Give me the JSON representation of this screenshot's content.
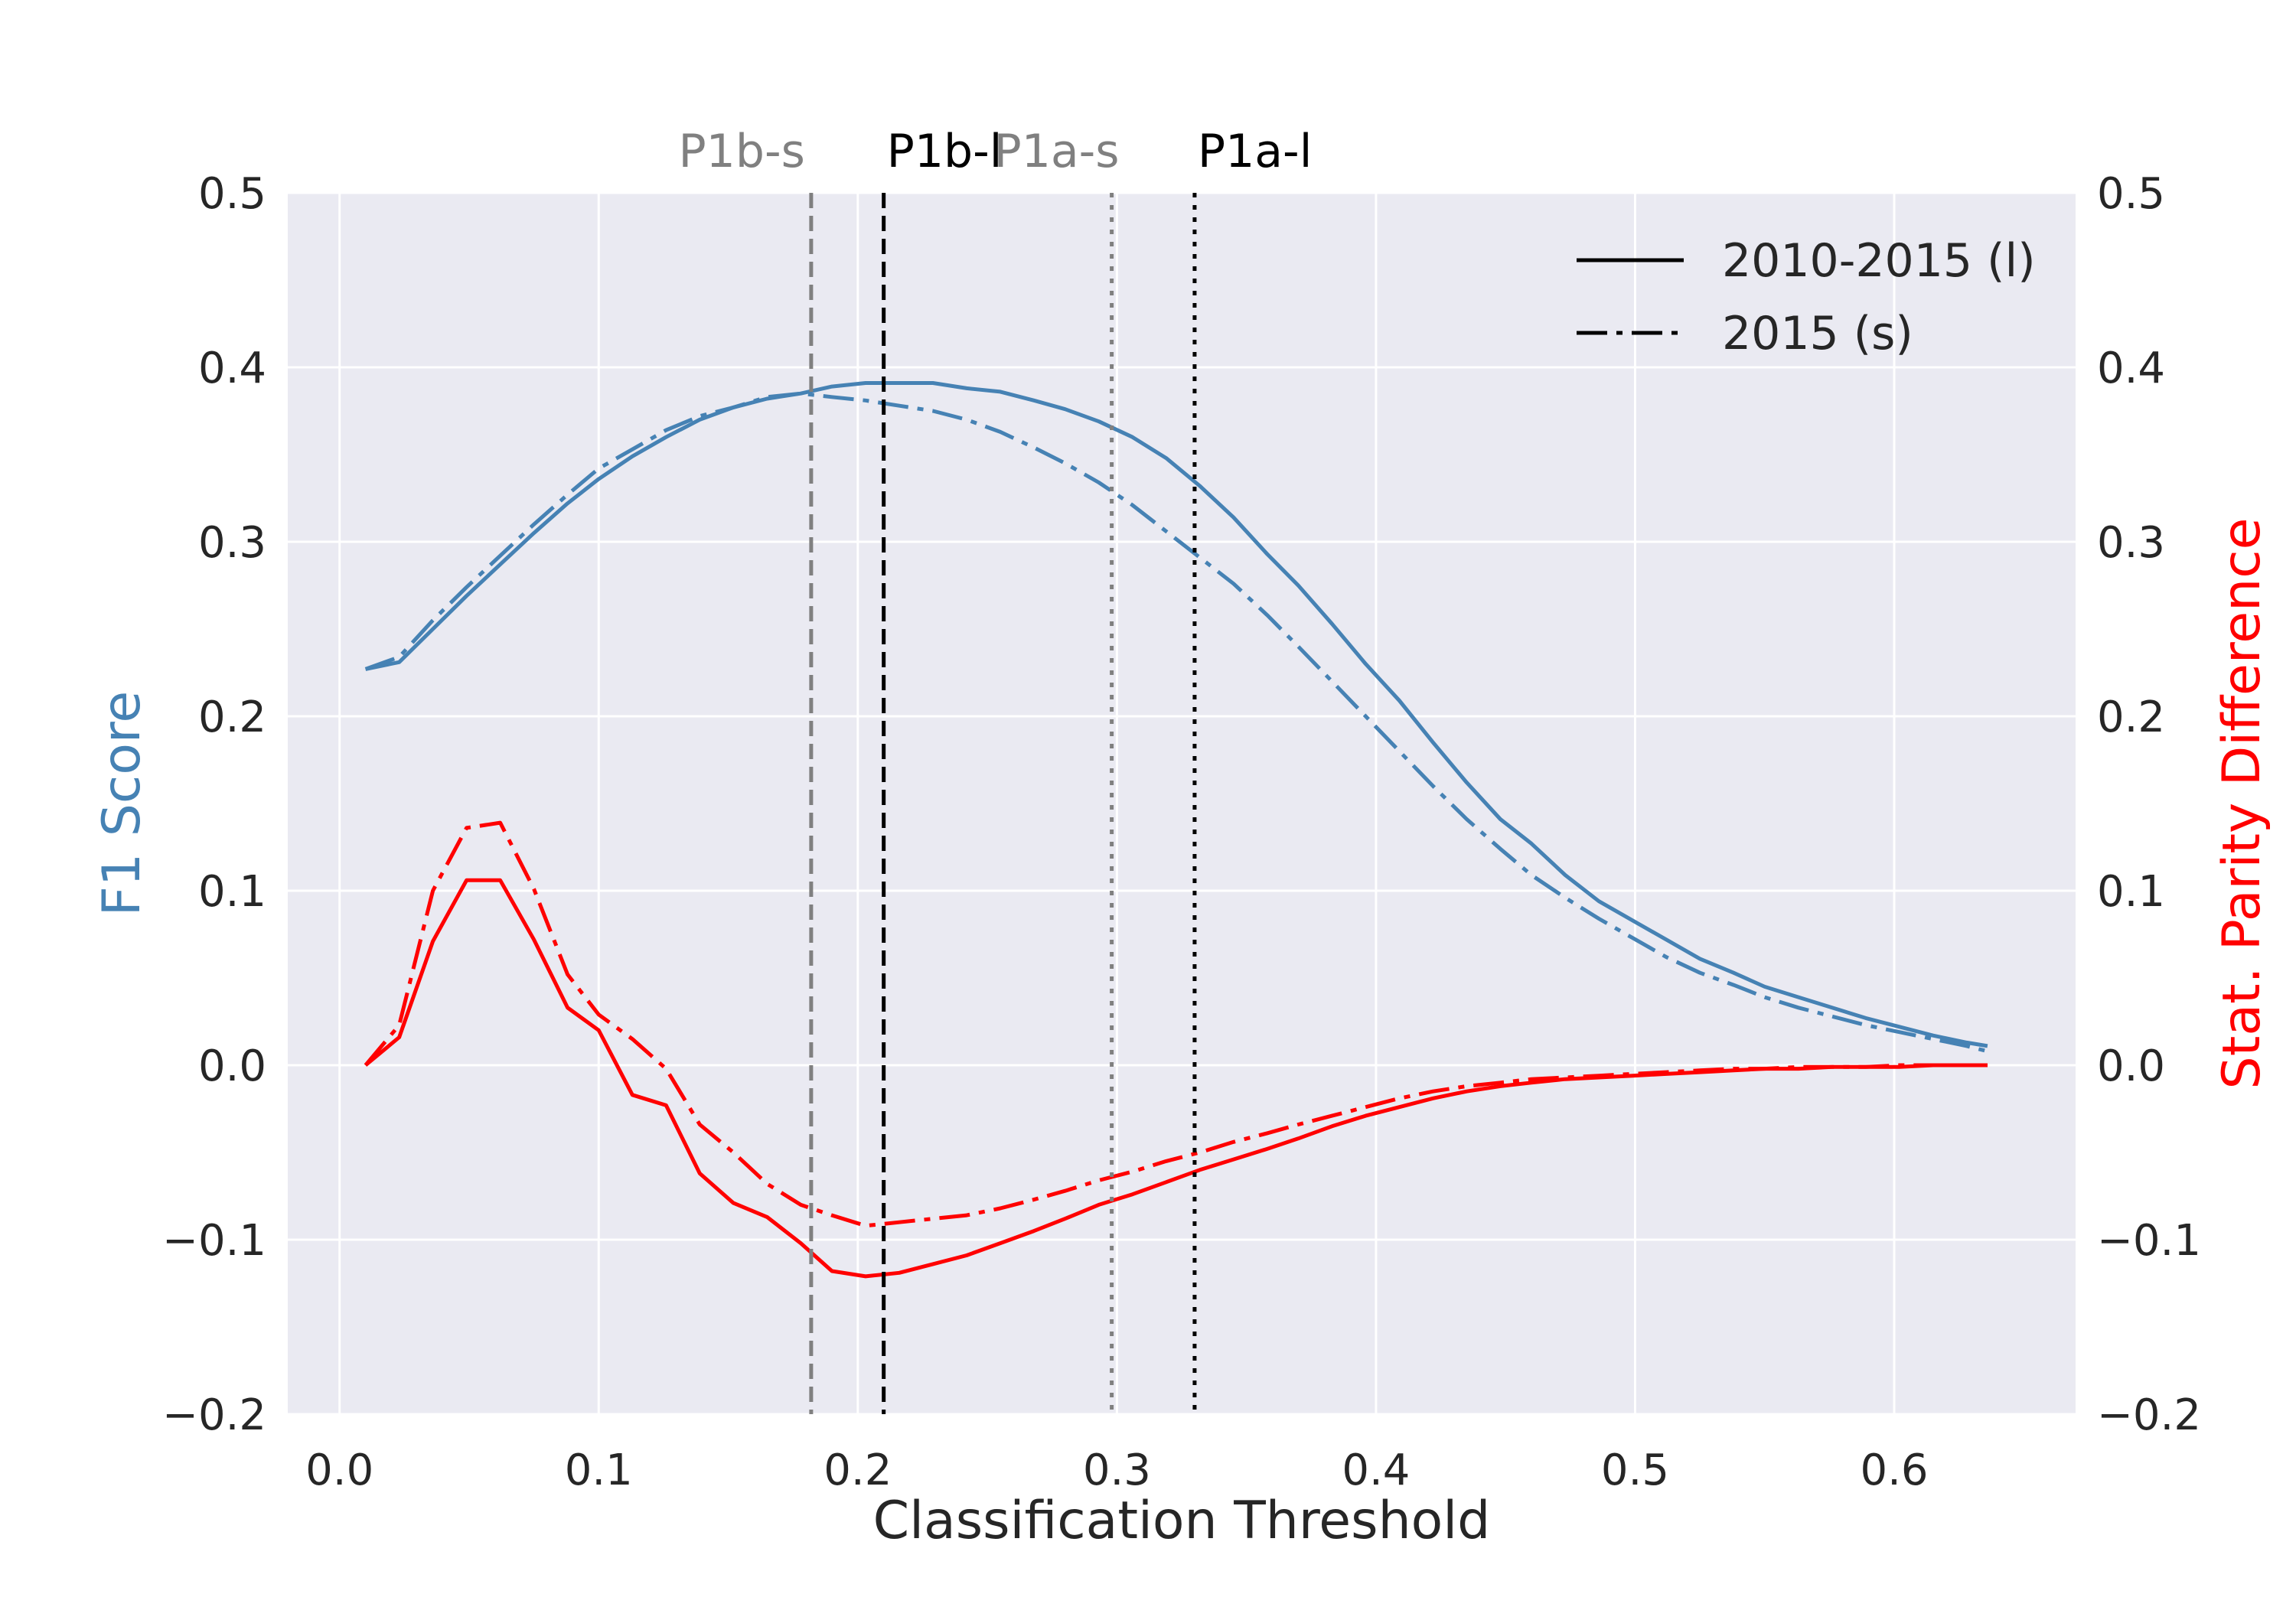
{
  "chart_data": {
    "type": "line",
    "title": "",
    "xlabel": "Classification Threshold",
    "ylabel_left": "F1 Score",
    "ylabel_right": "Stat. Parity Difference",
    "xlim": [
      -0.02,
      0.67
    ],
    "ylim": [
      -0.2,
      0.5
    ],
    "x_ticks": [
      0.0,
      0.1,
      0.2,
      0.3,
      0.4,
      0.5,
      0.6
    ],
    "x_tick_labels": [
      "0.0",
      "0.1",
      "0.2",
      "0.3",
      "0.4",
      "0.5",
      "0.6"
    ],
    "y_ticks": [
      -0.2,
      -0.1,
      0.0,
      0.1,
      0.2,
      0.3,
      0.4,
      0.5
    ],
    "y_tick_labels": [
      "−0.2",
      "−0.1",
      "0.0",
      "0.1",
      "0.2",
      "0.3",
      "0.4",
      "0.5"
    ],
    "grid": true,
    "legend_position": "top-right",
    "legend": [
      {
        "label": "2010-2015 (l)",
        "style": "solid"
      },
      {
        "label": "2015 (s)",
        "style": "dashdot"
      }
    ],
    "colors": {
      "f1": "#4682b4",
      "spd": "#ff0000",
      "plot_bg": "#eaeaf2",
      "grid": "#ffffff"
    },
    "vertical_lines": [
      {
        "label": "P1b-s",
        "x": 0.182,
        "style": "dashed",
        "color": "#808080"
      },
      {
        "label": "P1b-l",
        "x": 0.21,
        "style": "dashed",
        "color": "#000000"
      },
      {
        "label": "P1a-s",
        "x": 0.298,
        "style": "dotted",
        "color": "#808080"
      },
      {
        "label": "P1a-l",
        "x": 0.33,
        "style": "dotted",
        "color": "#000000"
      }
    ],
    "series": [
      {
        "metric": "F1 Score",
        "style": "solid",
        "color": "#4682b4",
        "x": [
          0.01,
          0.023,
          0.036,
          0.049,
          0.062,
          0.075,
          0.088,
          0.1,
          0.113,
          0.126,
          0.139,
          0.152,
          0.165,
          0.178,
          0.19,
          0.203,
          0.216,
          0.229,
          0.242,
          0.255,
          0.268,
          0.28,
          0.293,
          0.306,
          0.319,
          0.332,
          0.345,
          0.358,
          0.37,
          0.383,
          0.396,
          0.409,
          0.422,
          0.435,
          0.448,
          0.46,
          0.473,
          0.486,
          0.499,
          0.512,
          0.525,
          0.538,
          0.55,
          0.563,
          0.576,
          0.589,
          0.602,
          0.615,
          0.628,
          0.636
        ],
        "y": [
          0.227,
          0.231,
          0.25,
          0.269,
          0.287,
          0.305,
          0.322,
          0.336,
          0.349,
          0.36,
          0.37,
          0.377,
          0.382,
          0.385,
          0.389,
          0.391,
          0.391,
          0.391,
          0.388,
          0.386,
          0.381,
          0.376,
          0.369,
          0.36,
          0.348,
          0.332,
          0.314,
          0.293,
          0.275,
          0.253,
          0.23,
          0.209,
          0.185,
          0.162,
          0.141,
          0.127,
          0.109,
          0.094,
          0.083,
          0.072,
          0.061,
          0.053,
          0.045,
          0.039,
          0.033,
          0.027,
          0.022,
          0.017,
          0.013,
          0.011
        ]
      },
      {
        "metric": "F1 Score",
        "style": "dashdot",
        "color": "#4682b4",
        "x": [
          0.01,
          0.023,
          0.036,
          0.049,
          0.062,
          0.075,
          0.088,
          0.1,
          0.113,
          0.126,
          0.139,
          0.152,
          0.165,
          0.178,
          0.19,
          0.203,
          0.216,
          0.229,
          0.242,
          0.255,
          0.268,
          0.28,
          0.293,
          0.306,
          0.319,
          0.332,
          0.345,
          0.358,
          0.37,
          0.383,
          0.396,
          0.409,
          0.422,
          0.435,
          0.448,
          0.46,
          0.473,
          0.486,
          0.499,
          0.512,
          0.525,
          0.538,
          0.55,
          0.563,
          0.576,
          0.589,
          0.602,
          0.615,
          0.628,
          0.636
        ],
        "y": [
          0.227,
          0.234,
          0.255,
          0.274,
          0.292,
          0.31,
          0.327,
          0.342,
          0.353,
          0.364,
          0.372,
          0.377,
          0.383,
          0.385,
          0.383,
          0.381,
          0.378,
          0.375,
          0.37,
          0.363,
          0.354,
          0.345,
          0.334,
          0.321,
          0.306,
          0.291,
          0.276,
          0.258,
          0.24,
          0.22,
          0.2,
          0.18,
          0.16,
          0.141,
          0.124,
          0.109,
          0.096,
          0.084,
          0.073,
          0.062,
          0.053,
          0.046,
          0.039,
          0.033,
          0.028,
          0.023,
          0.019,
          0.015,
          0.011,
          0.008
        ]
      },
      {
        "metric": "Stat. Parity Difference",
        "style": "solid",
        "color": "#ff0000",
        "x": [
          0.01,
          0.023,
          0.036,
          0.049,
          0.062,
          0.075,
          0.088,
          0.1,
          0.113,
          0.126,
          0.139,
          0.152,
          0.165,
          0.178,
          0.19,
          0.203,
          0.216,
          0.229,
          0.242,
          0.255,
          0.268,
          0.28,
          0.293,
          0.306,
          0.319,
          0.332,
          0.345,
          0.358,
          0.37,
          0.383,
          0.396,
          0.409,
          0.422,
          0.435,
          0.448,
          0.46,
          0.473,
          0.486,
          0.499,
          0.512,
          0.525,
          0.538,
          0.55,
          0.563,
          0.576,
          0.589,
          0.602,
          0.615,
          0.628,
          0.636
        ],
        "y": [
          0.0,
          0.016,
          0.071,
          0.106,
          0.106,
          0.072,
          0.033,
          0.02,
          -0.017,
          -0.023,
          -0.062,
          -0.079,
          -0.087,
          -0.102,
          -0.118,
          -0.121,
          -0.119,
          -0.114,
          -0.109,
          -0.102,
          -0.095,
          -0.088,
          -0.08,
          -0.074,
          -0.067,
          -0.06,
          -0.054,
          -0.048,
          -0.042,
          -0.035,
          -0.029,
          -0.024,
          -0.019,
          -0.015,
          -0.012,
          -0.01,
          -0.008,
          -0.007,
          -0.006,
          -0.005,
          -0.004,
          -0.003,
          -0.002,
          -0.002,
          -0.001,
          -0.001,
          -0.001,
          0.0,
          0.0,
          0.0
        ]
      },
      {
        "metric": "Stat. Parity Difference",
        "style": "dashdot",
        "color": "#ff0000",
        "x": [
          0.01,
          0.023,
          0.036,
          0.049,
          0.062,
          0.075,
          0.088,
          0.1,
          0.113,
          0.126,
          0.139,
          0.152,
          0.165,
          0.178,
          0.19,
          0.203,
          0.216,
          0.229,
          0.242,
          0.255,
          0.268,
          0.28,
          0.293,
          0.306,
          0.319,
          0.332,
          0.345,
          0.358,
          0.37,
          0.383,
          0.396,
          0.409,
          0.422,
          0.435,
          0.448,
          0.46,
          0.473,
          0.486,
          0.499,
          0.512,
          0.525,
          0.538,
          0.55,
          0.563,
          0.576,
          0.589,
          0.602,
          0.615,
          0.628,
          0.636
        ],
        "y": [
          0.0,
          0.023,
          0.1,
          0.136,
          0.139,
          0.101,
          0.052,
          0.029,
          0.015,
          -0.002,
          -0.034,
          -0.05,
          -0.068,
          -0.08,
          -0.086,
          -0.092,
          -0.09,
          -0.088,
          -0.086,
          -0.082,
          -0.077,
          -0.072,
          -0.066,
          -0.061,
          -0.055,
          -0.05,
          -0.044,
          -0.039,
          -0.034,
          -0.029,
          -0.024,
          -0.019,
          -0.015,
          -0.012,
          -0.01,
          -0.008,
          -0.007,
          -0.006,
          -0.005,
          -0.004,
          -0.003,
          -0.002,
          -0.002,
          -0.001,
          -0.001,
          -0.001,
          0.0,
          0.0,
          0.0,
          0.0
        ]
      }
    ]
  }
}
